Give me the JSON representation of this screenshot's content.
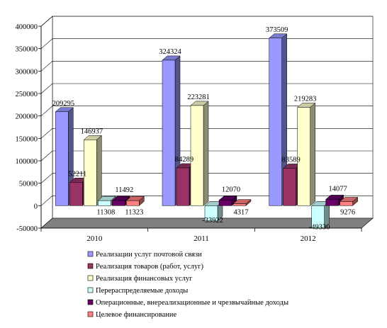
{
  "chart_data": {
    "type": "bar",
    "categories": [
      "2010",
      "2011",
      "2012"
    ],
    "ylim": [
      -50000,
      400000
    ],
    "yticks": [
      400000,
      350000,
      300000,
      250000,
      200000,
      150000,
      100000,
      50000,
      0,
      -50000
    ],
    "grid": true,
    "legend_position": "bottom",
    "title": "",
    "xlabel": "",
    "ylabel": "",
    "series": [
      {
        "name": "Реализации услуг почтовой связи",
        "color": "#9999ff",
        "values": [
          209295,
          324324,
          373509
        ],
        "labels": [
          "209295",
          "324324",
          "373509"
        ]
      },
      {
        "name": "Реализация товаров (работ, услуг)",
        "color": "#993366",
        "values": [
          52211,
          84289,
          83589
        ],
        "labels": [
          "52211",
          "84289",
          "83589"
        ]
      },
      {
        "name": "Реализация финансовых услуг",
        "color": "#ffffcc",
        "values": [
          146937,
          223281,
          219283
        ],
        "labels": [
          "146937",
          "223281",
          "219283"
        ]
      },
      {
        "name": "Перераспределяемые доходы",
        "color": "#ccffff",
        "values": [
          11308,
          -33922,
          -49330
        ],
        "labels": [
          "11308",
          "-33922",
          "-49330"
        ]
      },
      {
        "name": "Операционные, внереализационные и чрезвычайные доходы",
        "color": "#660066",
        "values": [
          11492,
          12070,
          14077
        ],
        "labels": [
          "11492",
          "12070",
          "14077"
        ]
      },
      {
        "name": "Целевое финансирование",
        "color": "#ff8080",
        "values": [
          11323,
          4317,
          9276
        ],
        "labels": [
          "11323",
          "4317",
          "9276"
        ]
      }
    ]
  }
}
